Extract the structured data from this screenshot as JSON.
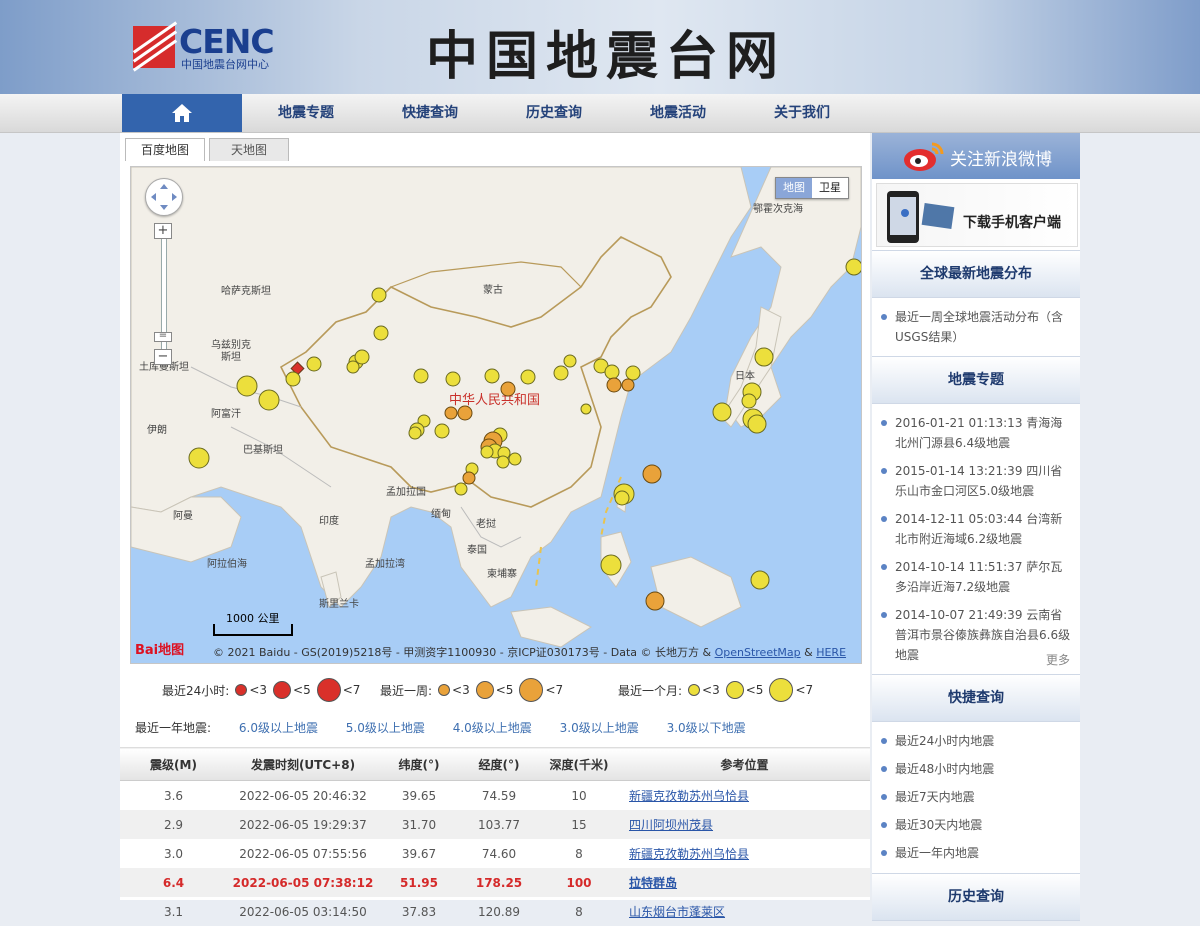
{
  "header": {
    "logo_text": "CENC",
    "logo_sub": "中国地震台网中心",
    "site_title": "中国地震台网"
  },
  "nav": {
    "home_icon": "home-icon",
    "items": [
      "地震专题",
      "快捷查询",
      "历史查询",
      "地震活动",
      "关于我们"
    ]
  },
  "map": {
    "tabs": [
      "百度地图",
      "天地图"
    ],
    "maptype": [
      "地图",
      "卫星"
    ],
    "scale_label": "1000 公里",
    "baidu_logo": "Bai地图",
    "copyright": "© 2021 Baidu - GS(2019)5218号 - 甲测资字1100930 - 京ICP证030173号 - Data © 长地万方 &",
    "osm_link": "OpenStreetMap",
    "amp": "&",
    "here_link": "HERE",
    "labels": [
      {
        "text": "鄂霍次克海",
        "pos": [
          622,
          45
        ]
      },
      {
        "text": "哈萨克斯坦",
        "pos": [
          90,
          127
        ]
      },
      {
        "text": "蒙古",
        "pos": [
          352,
          126
        ]
      },
      {
        "text": "乌兹别克",
        "pos": [
          80,
          181
        ]
      },
      {
        "text": "斯坦",
        "pos": [
          90,
          193
        ]
      },
      {
        "text": "土库曼斯坦",
        "pos": [
          8,
          203
        ]
      },
      {
        "text": "日本",
        "pos": [
          604,
          212
        ]
      },
      {
        "text": "中华人民共和国",
        "pos": [
          318,
          237
        ],
        "red": true
      },
      {
        "text": "阿富汗",
        "pos": [
          80,
          250
        ]
      },
      {
        "text": "伊朗",
        "pos": [
          16,
          266
        ]
      },
      {
        "text": "巴基斯坦",
        "pos": [
          112,
          286
        ]
      },
      {
        "text": "孟加拉国",
        "pos": [
          255,
          328
        ]
      },
      {
        "text": "阿曼",
        "pos": [
          42,
          352
        ]
      },
      {
        "text": "印度",
        "pos": [
          188,
          357
        ]
      },
      {
        "text": "缅甸",
        "pos": [
          300,
          350
        ]
      },
      {
        "text": "老挝",
        "pos": [
          345,
          360
        ]
      },
      {
        "text": "泰国",
        "pos": [
          336,
          386
        ]
      },
      {
        "text": "阿拉伯海",
        "pos": [
          76,
          400
        ]
      },
      {
        "text": "孟加拉湾",
        "pos": [
          234,
          400
        ]
      },
      {
        "text": "柬埔寨",
        "pos": [
          356,
          410
        ]
      },
      {
        "text": "斯里兰卡",
        "pos": [
          188,
          440
        ]
      }
    ]
  },
  "legend": {
    "day_label": "最近24小时:",
    "week_label": "最近一周:",
    "month_label": "最近一个月:",
    "mags": [
      "<3",
      "<5",
      "<7"
    ],
    "colors": {
      "day": "#d9302a",
      "week": "#e9a23a",
      "month": "#ecdf3c"
    }
  },
  "year_filter": {
    "label": "最近一年地震:",
    "links": [
      "6.0级以上地震",
      "5.0级以上地震",
      "4.0级以上地震",
      "3.0级以上地震",
      "3.0级以下地震"
    ]
  },
  "table": {
    "headers": [
      "震级(M)",
      "发震时刻(UTC+8)",
      "纬度(°)",
      "经度(°)",
      "深度(千米)",
      "参考位置"
    ],
    "rows": [
      {
        "mag": "3.6",
        "time": "2022-06-05 20:46:32",
        "lat": "39.65",
        "lon": "74.59",
        "depth": "10",
        "loc": "新疆克孜勒苏州乌恰县"
      },
      {
        "mag": "2.9",
        "time": "2022-06-05 19:29:37",
        "lat": "31.70",
        "lon": "103.77",
        "depth": "15",
        "loc": "四川阿坝州茂县"
      },
      {
        "mag": "3.0",
        "time": "2022-06-05 07:55:56",
        "lat": "39.67",
        "lon": "74.60",
        "depth": "8",
        "loc": "新疆克孜勒苏州乌恰县"
      },
      {
        "mag": "6.4",
        "time": "2022-06-05 07:38:12",
        "lat": "51.95",
        "lon": "178.25",
        "depth": "100",
        "loc": "拉特群岛",
        "highlight": true
      },
      {
        "mag": "3.1",
        "time": "2022-06-05 03:14:50",
        "lat": "37.83",
        "lon": "120.89",
        "depth": "8",
        "loc": "山东烟台市蓬莱区"
      }
    ]
  },
  "sidebar": {
    "weibo": "关注新浪微博",
    "app": "下载手机客户端",
    "sections": {
      "global": {
        "title": "全球最新地震分布",
        "items": [
          "最近一周全球地震活动分布（含USGS结果）"
        ]
      },
      "topics": {
        "title": "地震专题",
        "items": [
          "2016-01-21 01:13:13 青海海北州门源县6.4级地震",
          "2015-01-14 13:21:39 四川省乐山市金口河区5.0级地震",
          "2014-12-11 05:03:44 台湾新北市附近海域6.2级地震",
          "2014-10-14 11:51:37 萨尔瓦多沿岸近海7.2级地震",
          "2014-10-07 21:49:39 云南省普洱市景谷傣族彝族自治县6.6级地震"
        ],
        "more": "更多"
      },
      "quick": {
        "title": "快捷查询",
        "items": [
          "最近24小时内地震",
          "最近48小时内地震",
          "最近7天内地震",
          "最近30天内地震",
          "最近一年内地震"
        ]
      },
      "history": {
        "title": "历史查询"
      }
    }
  }
}
